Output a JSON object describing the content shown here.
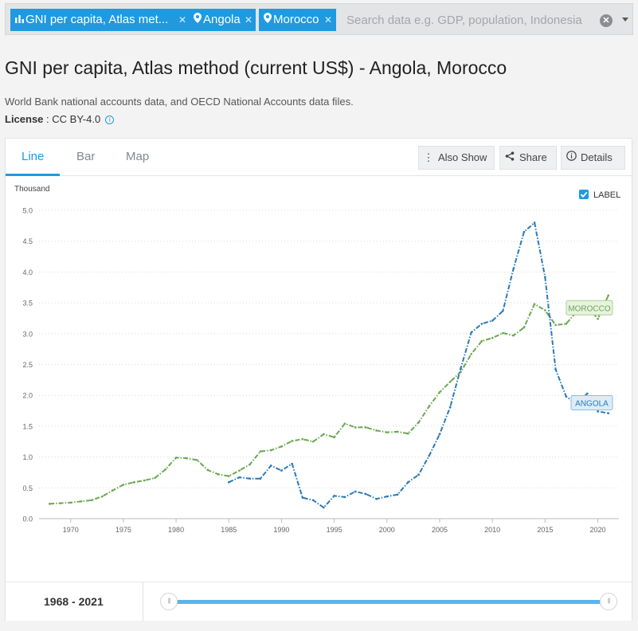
{
  "search": {
    "chips": [
      {
        "label": "GNI per capita, Atlas met...",
        "icon": "bar-chart-icon"
      },
      {
        "label": "Angola",
        "icon": "map-pin-icon"
      },
      {
        "label": "Morocco",
        "icon": "map-pin-icon"
      }
    ],
    "placeholder": "Search data e.g. GDP, population, Indonesia"
  },
  "page": {
    "title": "GNI per capita, Atlas method (current US$) - Angola, Morocco",
    "source": "World Bank national accounts data, and OECD National Accounts data files.",
    "license_label": "License",
    "license_value": " : CC BY-4.0"
  },
  "tabs": [
    "Line",
    "Bar",
    "Map"
  ],
  "toolbar": {
    "also_show": "Also Show",
    "share": "Share",
    "details": "Details"
  },
  "label_toggle": {
    "label": "LABEL",
    "checked": true
  },
  "range": {
    "start": "1968",
    "sep": " - ",
    "end": "2021"
  },
  "colors": {
    "accent": "#1f9ae0",
    "angola": "#2a7ab8",
    "morocco": "#6aa84f"
  },
  "chart_data": {
    "type": "line",
    "title": "",
    "ylabel": "Thousand",
    "xlabel": "",
    "xlim": [
      1967,
      2022
    ],
    "ylim": [
      0,
      5.0
    ],
    "yticks": [
      "0.0",
      "0.5",
      "1.0",
      "1.5",
      "2.0",
      "2.5",
      "3.0",
      "3.5",
      "4.0",
      "4.5",
      "5.0"
    ],
    "xticks": [
      "1970",
      "1975",
      "1980",
      "1985",
      "1990",
      "1995",
      "2000",
      "2005",
      "2010",
      "2015",
      "2020"
    ],
    "grid": true,
    "series": [
      {
        "name": "MOROCCO",
        "x": [
          1968,
          1969,
          1970,
          1971,
          1972,
          1973,
          1974,
          1975,
          1976,
          1977,
          1978,
          1979,
          1980,
          1981,
          1982,
          1983,
          1984,
          1985,
          1986,
          1987,
          1988,
          1989,
          1990,
          1991,
          1992,
          1993,
          1994,
          1995,
          1996,
          1997,
          1998,
          1999,
          2000,
          2001,
          2002,
          2003,
          2004,
          2005,
          2006,
          2007,
          2008,
          2009,
          2010,
          2011,
          2012,
          2013,
          2014,
          2015,
          2016,
          2017,
          2018,
          2019,
          2020,
          2021
        ],
        "values": [
          0.24,
          0.25,
          0.26,
          0.28,
          0.3,
          0.36,
          0.46,
          0.55,
          0.59,
          0.62,
          0.66,
          0.8,
          0.99,
          0.98,
          0.95,
          0.79,
          0.72,
          0.69,
          0.78,
          0.88,
          1.09,
          1.11,
          1.17,
          1.26,
          1.29,
          1.25,
          1.37,
          1.32,
          1.54,
          1.48,
          1.48,
          1.43,
          1.4,
          1.41,
          1.38,
          1.56,
          1.82,
          2.05,
          2.22,
          2.38,
          2.67,
          2.88,
          2.93,
          3.01,
          2.97,
          3.1,
          3.48,
          3.38,
          3.14,
          3.16,
          3.36,
          3.45,
          3.24,
          3.62
        ],
        "color": "#6aa84f",
        "label": "MOROCCO"
      },
      {
        "name": "ANGOLA",
        "x": [
          1985,
          1986,
          1987,
          1988,
          1989,
          1990,
          1991,
          1992,
          1993,
          1994,
          1995,
          1996,
          1997,
          1998,
          1999,
          2000,
          2001,
          2002,
          2003,
          2004,
          2005,
          2006,
          2007,
          2008,
          2009,
          2010,
          2011,
          2012,
          2013,
          2014,
          2015,
          2016,
          2017,
          2018,
          2019,
          2020,
          2021
        ],
        "values": [
          0.59,
          0.67,
          0.65,
          0.65,
          0.86,
          0.78,
          0.89,
          0.34,
          0.3,
          0.18,
          0.37,
          0.35,
          0.44,
          0.4,
          0.32,
          0.36,
          0.39,
          0.59,
          0.71,
          1.02,
          1.37,
          1.81,
          2.44,
          3.02,
          3.16,
          3.21,
          3.37,
          4.05,
          4.65,
          4.8,
          3.92,
          2.42,
          1.98,
          1.86,
          2.03,
          1.74,
          1.71
        ],
        "color": "#2a7ab8",
        "label": "ANGOLA"
      }
    ]
  }
}
